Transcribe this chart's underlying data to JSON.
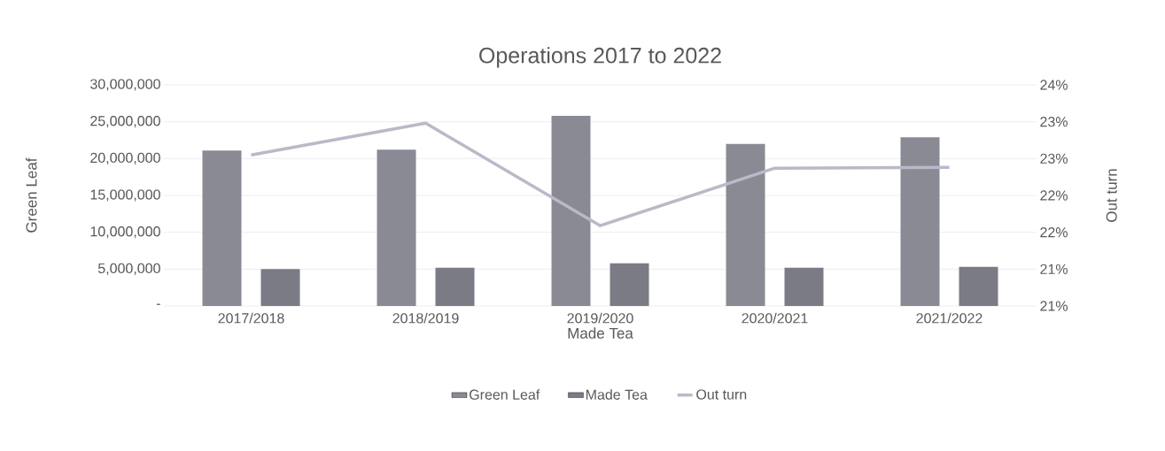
{
  "chart_data": {
    "type": "bar",
    "title": "Operations 2017 to 2022",
    "xlabel": "Made Tea",
    "ylabel": "Green Leaf",
    "y2label": "Out turn",
    "categories": [
      "2017/2018",
      "2018/2019",
      "2019/2020",
      "2020/2021",
      "2021/2022"
    ],
    "series": [
      {
        "name": "Green Leaf",
        "color": "#8a8a94",
        "values": [
          21100000,
          21200000,
          25800000,
          22000000,
          22900000
        ]
      },
      {
        "name": "Made Tea",
        "color": "#7b7b86",
        "values": [
          5000000,
          5200000,
          5800000,
          5200000,
          5300000
        ]
      },
      {
        "name": "Out turn",
        "type": "line",
        "axis": "y2",
        "color": "#b9b9c9",
        "values": [
          23.05,
          23.48,
          22.09,
          22.87,
          22.88
        ]
      }
    ],
    "ylim": [
      0,
      30000000
    ],
    "yticks": [
      {
        "value": 0,
        "label": "-"
      },
      {
        "value": 5000000,
        "label": "5,000,000"
      },
      {
        "value": 10000000,
        "label": "10,000,000"
      },
      {
        "value": 15000000,
        "label": "15,000,000"
      },
      {
        "value": 20000000,
        "label": "20,000,000"
      },
      {
        "value": 25000000,
        "label": "25,000,000"
      },
      {
        "value": 30000000,
        "label": "30,000,000"
      }
    ],
    "y2lim": [
      21,
      24
    ],
    "y2ticks": [
      {
        "value": 21,
        "label": "21%"
      },
      {
        "value": 21.5,
        "label": "21%"
      },
      {
        "value": 22,
        "label": "22%"
      },
      {
        "value": 22.5,
        "label": "22%"
      },
      {
        "value": 23,
        "label": "23%"
      },
      {
        "value": 23.5,
        "label": "23%"
      },
      {
        "value": 24,
        "label": "24%"
      }
    ],
    "grid": "y",
    "legend": "bottom",
    "marker": "none",
    "line_style": "solid"
  }
}
